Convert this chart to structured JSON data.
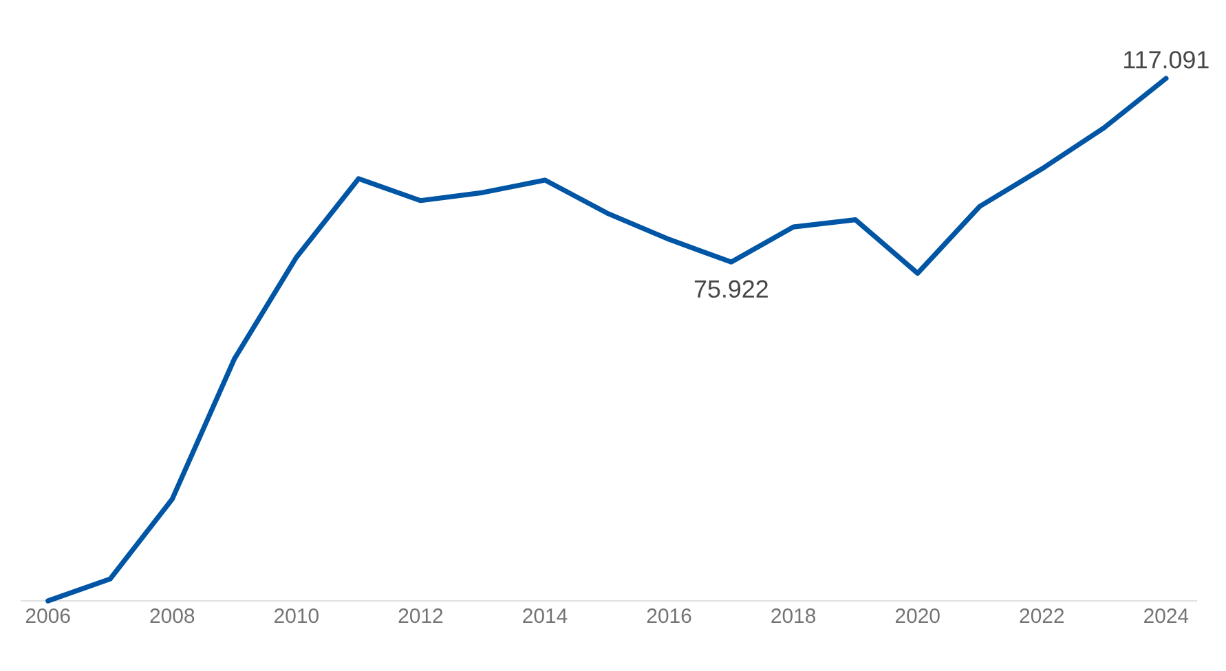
{
  "chart_data": {
    "type": "line",
    "x": [
      2006,
      2007,
      2008,
      2009,
      2010,
      2011,
      2012,
      2013,
      2014,
      2015,
      2016,
      2017,
      2018,
      2019,
      2020,
      2021,
      2022,
      2023,
      2024
    ],
    "series": [
      {
        "color": "#0055a4",
        "values": [
          0,
          4.9,
          22.8,
          54.2,
          77.0,
          94.6,
          89.7,
          91.5,
          94.3,
          86.9,
          81.0,
          75.922,
          83.8,
          85.4,
          73.4,
          88.4,
          96.8,
          106.0,
          117.091
        ],
        "value_labels": [
          null,
          null,
          null,
          null,
          null,
          null,
          null,
          null,
          null,
          null,
          null,
          "75.922",
          null,
          null,
          null,
          null,
          null,
          null,
          "117.091"
        ]
      }
    ],
    "xlim": [
      2005.56,
      2024.5
    ],
    "xticks": [
      2006,
      2008,
      2010,
      2012,
      2014,
      2016,
      2018,
      2020,
      2022,
      2024
    ],
    "tick_labels": "x",
    "grid": false,
    "marker": "none",
    "line_style": "solid"
  }
}
